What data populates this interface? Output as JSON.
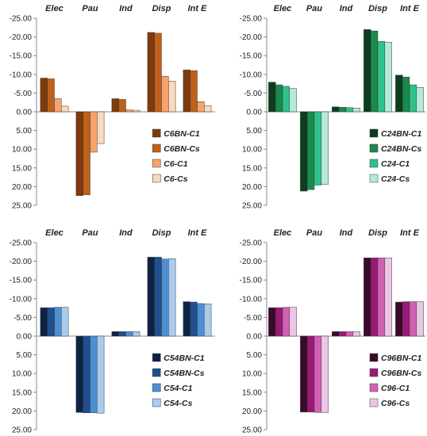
{
  "y_tick_labels": [
    "-25.00",
    "-20.00",
    "-15.00",
    "-10.00",
    "-5.00",
    "0.00",
    "5.00",
    "10.00",
    "15.00",
    "20.00",
    "25.00"
  ],
  "chart_data": [
    {
      "type": "bar",
      "categories": [
        "Elec",
        "Pau",
        "Ind",
        "Disp",
        "Int E"
      ],
      "ylim": [
        -25,
        25
      ],
      "y_inverted": true,
      "grid": false,
      "legend_position": "right",
      "series": [
        {
          "name": "C6BN-C1",
          "color": "#7f3a0c",
          "values": [
            -9.0,
            22.4,
            -3.5,
            -21.2,
            -11.2
          ]
        },
        {
          "name": "C6BN-Cs",
          "color": "#c0611b",
          "values": [
            -8.8,
            22.2,
            -3.3,
            -21.0,
            -11.0
          ]
        },
        {
          "name": "C6-C1",
          "color": "#f6a36c",
          "values": [
            -3.5,
            10.8,
            -0.5,
            -9.5,
            -2.7
          ]
        },
        {
          "name": "C6-Cs",
          "color": "#fbd9bd",
          "values": [
            -1.5,
            8.5,
            -0.4,
            -8.2,
            -1.6
          ]
        }
      ]
    },
    {
      "type": "bar",
      "categories": [
        "Elec",
        "Pau",
        "Ind",
        "Disp",
        "Int E"
      ],
      "ylim": [
        -25,
        25
      ],
      "y_inverted": true,
      "grid": false,
      "legend_position": "right",
      "series": [
        {
          "name": "C24BN-C1",
          "color": "#0b3d1f",
          "values": [
            -7.9,
            21.2,
            -1.3,
            -22.0,
            -9.8
          ]
        },
        {
          "name": "C24BN-Cs",
          "color": "#1a8a4f",
          "values": [
            -7.2,
            20.8,
            -1.2,
            -21.6,
            -9.3
          ]
        },
        {
          "name": "C24-C1",
          "color": "#2fc28a",
          "values": [
            -6.8,
            19.6,
            -1.1,
            -18.8,
            -7.2
          ]
        },
        {
          "name": "C24-Cs",
          "color": "#b5ead7",
          "values": [
            -6.2,
            19.4,
            -1.0,
            -18.6,
            -6.5
          ]
        }
      ]
    },
    {
      "type": "bar",
      "categories": [
        "Elec",
        "Pau",
        "Ind",
        "Disp",
        "Int E"
      ],
      "ylim": [
        -25,
        25
      ],
      "y_inverted": true,
      "grid": false,
      "legend_position": "right",
      "series": [
        {
          "name": "C54BN-C1",
          "color": "#0d2346",
          "values": [
            -7.6,
            20.4,
            -1.2,
            -21.1,
            -9.2
          ]
        },
        {
          "name": "C54BN-Cs",
          "color": "#1f4f8f",
          "values": [
            -7.6,
            20.5,
            -1.2,
            -21.1,
            -9.1
          ]
        },
        {
          "name": "C54-C1",
          "color": "#4d8fd1",
          "values": [
            -7.7,
            20.5,
            -1.2,
            -20.6,
            -8.7
          ]
        },
        {
          "name": "C54-Cs",
          "color": "#a9cbee",
          "values": [
            -7.7,
            20.6,
            -1.2,
            -20.7,
            -8.6
          ]
        }
      ]
    },
    {
      "type": "bar",
      "categories": [
        "Elec",
        "Pau",
        "Ind",
        "Disp",
        "Int E"
      ],
      "ylim": [
        -25,
        25
      ],
      "y_inverted": true,
      "grid": false,
      "legend_position": "right",
      "series": [
        {
          "name": "C96BN-C1",
          "color": "#3a0a2a",
          "values": [
            -7.6,
            20.3,
            -1.2,
            -20.9,
            -9.1
          ]
        },
        {
          "name": "C96BN-Cs",
          "color": "#9a1a78",
          "values": [
            -7.6,
            20.3,
            -1.2,
            -20.9,
            -9.2
          ]
        },
        {
          "name": "C96-C1",
          "color": "#d061b5",
          "values": [
            -7.7,
            20.4,
            -1.2,
            -20.9,
            -9.2
          ]
        },
        {
          "name": "C96-Cs",
          "color": "#ecc6e4",
          "values": [
            -7.7,
            20.4,
            -1.2,
            -20.9,
            -9.2
          ]
        }
      ]
    }
  ]
}
